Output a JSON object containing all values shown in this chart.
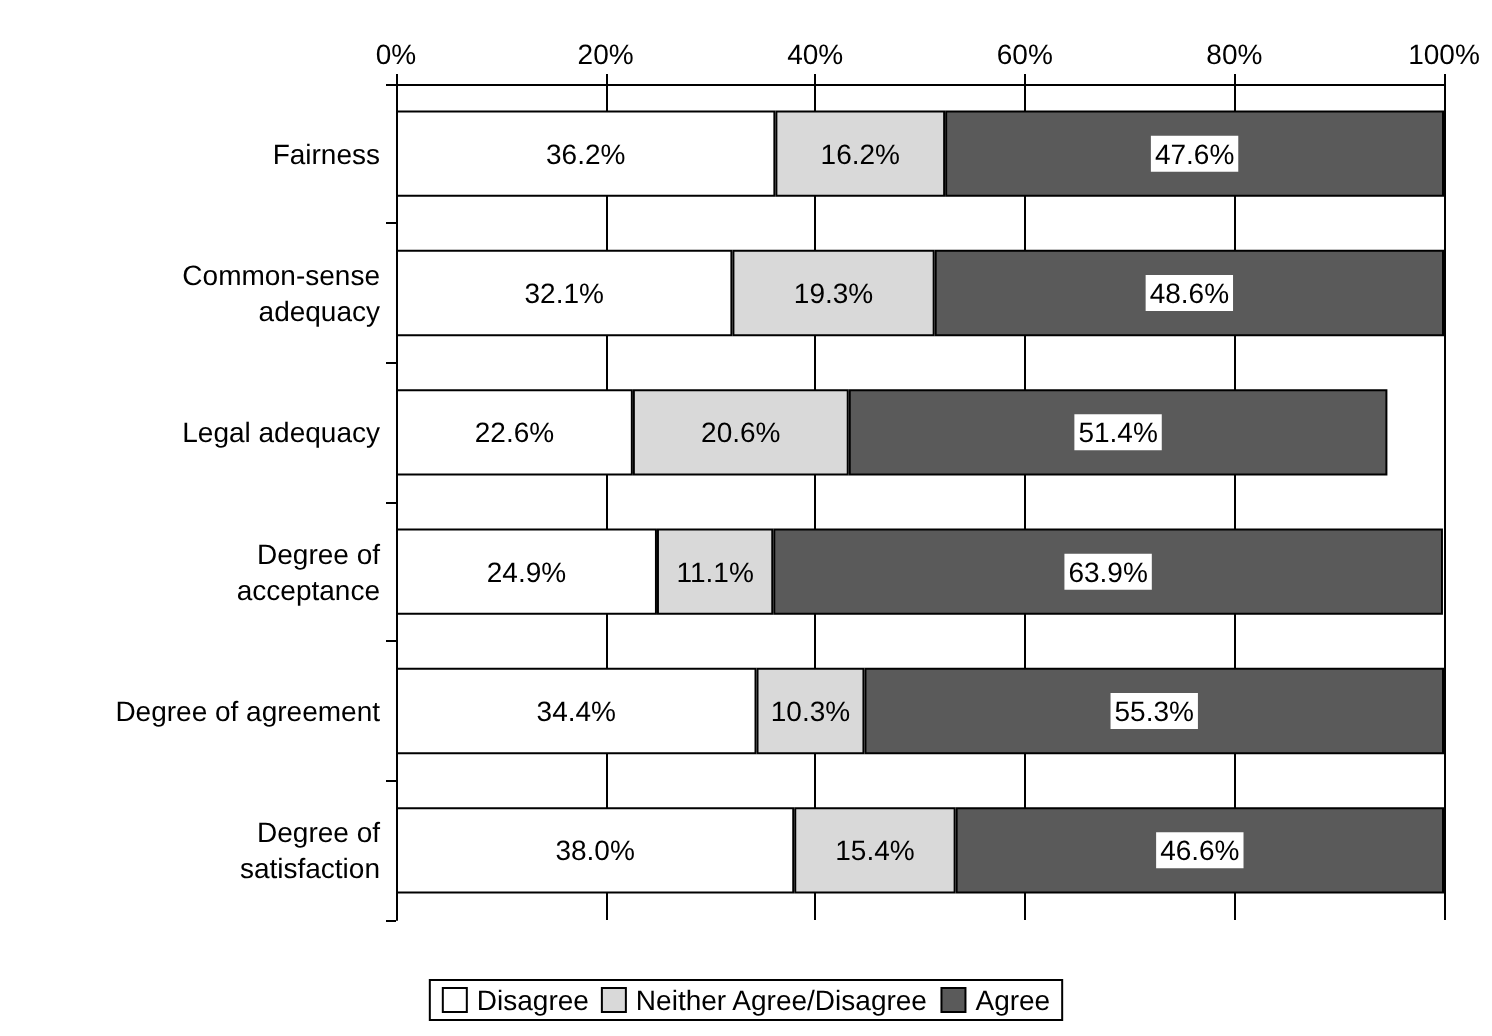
{
  "chart_data": {
    "type": "bar",
    "orientation": "horizontal",
    "stacked": true,
    "categories": [
      "Fairness",
      "Common-sense\nadequacy",
      "Legal adequacy",
      "Degree of\nacceptance",
      "Degree of agreement",
      "Degree of\nsatisfaction"
    ],
    "series": [
      {
        "name": "Disagree",
        "color": "#ffffff",
        "values": [
          36.2,
          32.1,
          22.6,
          24.9,
          34.4,
          38.0
        ],
        "value_labels": [
          "36.2%",
          "32.1%",
          "22.6%",
          "24.9%",
          "34.4%",
          "38.0%"
        ]
      },
      {
        "name": "Neither Agree/Disagree",
        "color": "#d9d9d9",
        "values": [
          16.2,
          19.3,
          20.6,
          11.1,
          10.3,
          15.4
        ],
        "value_labels": [
          "16.2%",
          "19.3%",
          "20.6%",
          "11.1%",
          "10.3%",
          "15.4%"
        ]
      },
      {
        "name": "Agree",
        "color": "#5a5a5a",
        "values": [
          47.6,
          48.6,
          51.4,
          63.9,
          55.3,
          46.6
        ],
        "value_labels": [
          "47.6%",
          "48.6%",
          "51.4%",
          "63.9%",
          "55.3%",
          "46.6%"
        ]
      }
    ],
    "xlim": [
      0,
      100
    ],
    "xticks": [
      {
        "value": 0,
        "label": "0%"
      },
      {
        "value": 20,
        "label": "20%"
      },
      {
        "value": 40,
        "label": "40%"
      },
      {
        "value": 60,
        "label": "60%"
      },
      {
        "value": 80,
        "label": "80%"
      },
      {
        "value": 100,
        "label": "100%"
      }
    ],
    "grid": "x",
    "legend": "bottom"
  }
}
